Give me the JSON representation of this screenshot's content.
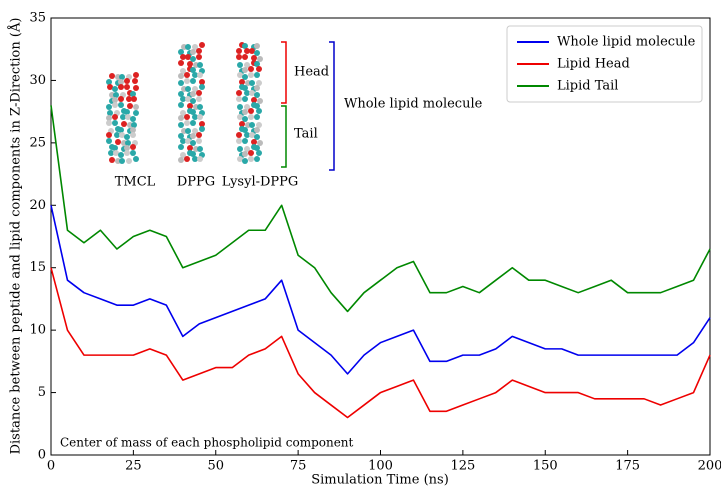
{
  "chart_data": {
    "type": "line",
    "xlabel": "Simulation Time (ns)",
    "ylabel": "Distance between peptide and lipid components in Z-Direction (Å)",
    "x": [
      0,
      5,
      10,
      15,
      20,
      25,
      30,
      35,
      40,
      45,
      50,
      55,
      60,
      65,
      70,
      75,
      80,
      85,
      90,
      95,
      100,
      105,
      110,
      115,
      120,
      125,
      130,
      135,
      140,
      145,
      150,
      155,
      160,
      165,
      170,
      175,
      180,
      185,
      190,
      195,
      200
    ],
    "series": [
      {
        "name": "Whole lipid molecule",
        "color": "#0000ee",
        "values": [
          20,
          14,
          13,
          12.5,
          12,
          12,
          12.5,
          12,
          9.5,
          10.5,
          11,
          11.5,
          12,
          12.5,
          14,
          10,
          9,
          8,
          6.5,
          8,
          9,
          9.5,
          10,
          7.5,
          7.5,
          8,
          8,
          8.5,
          9.5,
          9,
          8.5,
          8.5,
          8,
          8,
          8,
          8,
          8,
          8,
          8,
          9,
          11
        ]
      },
      {
        "name": "Lipid Head",
        "color": "#ee0000",
        "values": [
          15,
          10,
          8,
          8,
          8,
          8,
          8.5,
          8,
          6,
          6.5,
          7,
          7,
          8,
          8.5,
          9.5,
          6.5,
          5,
          4,
          3,
          4,
          5,
          5.5,
          6,
          3.5,
          3.5,
          4,
          4.5,
          5,
          6,
          5.5,
          5,
          5,
          5,
          4.5,
          4.5,
          4.5,
          4.5,
          4,
          4.5,
          5,
          8
        ]
      },
      {
        "name": "Lipid Tail",
        "color": "#008800",
        "values": [
          28,
          18,
          17,
          18,
          16.5,
          17.5,
          18,
          17.5,
          15,
          15.5,
          16,
          17,
          18,
          18,
          20,
          16,
          15,
          13,
          11.5,
          13,
          14,
          15,
          15.5,
          13,
          13,
          13.5,
          13,
          14,
          15,
          14,
          14,
          13.5,
          13,
          13.5,
          14,
          13,
          13,
          13,
          13.5,
          14,
          16.5
        ]
      }
    ],
    "xlim": [
      0,
      200
    ],
    "xticks": [
      0,
      25,
      50,
      75,
      100,
      125,
      150,
      175,
      200
    ],
    "ylim": [
      0,
      35
    ],
    "yticks": [
      0,
      5,
      10,
      15,
      20,
      25,
      30,
      35
    ],
    "legend": "upper right",
    "annotations": {
      "molecules": [
        "TMCL",
        "DPPG",
        "Lysyl-DPPG"
      ],
      "head": "Head",
      "tail": "Tail",
      "whole": "Whole lipid molecule",
      "note": "Center of mass of each phospholipid component"
    }
  }
}
